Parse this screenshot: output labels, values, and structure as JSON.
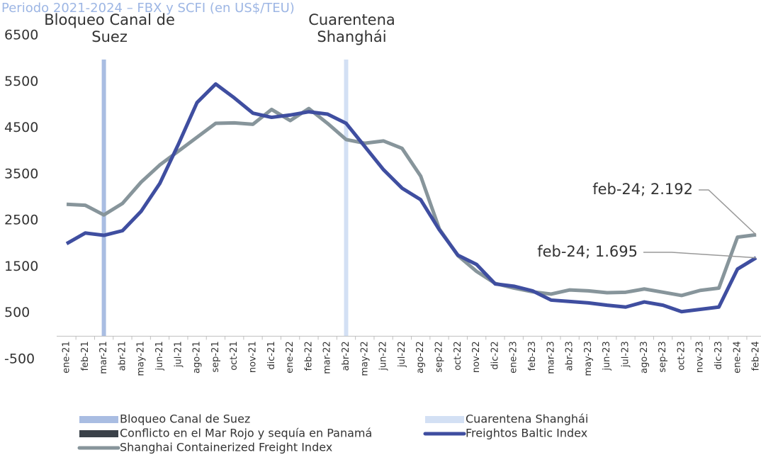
{
  "chart_data": {
    "type": "line",
    "title": "Periodo 2021-2024 – FBX  y SCFI (en US$/TEU)",
    "categories": [
      "ene-21",
      "feb-21",
      "mar-21",
      "abr-21",
      "may-21",
      "jun-21",
      "jul-21",
      "ago-21",
      "sep-21",
      "oct-21",
      "nov-21",
      "dic-21",
      "ene-22",
      "feb-22",
      "mar-22",
      "abr-22",
      "may-22",
      "jun-22",
      "jul-22",
      "ago-22",
      "sep-22",
      "oct-22",
      "nov-22",
      "dic-22",
      "ene-23",
      "feb-23",
      "mar-23",
      "abr-23",
      "may-23",
      "jun-23",
      "jul-23",
      "ago-23",
      "sep-23",
      "oct-23",
      "nov-23",
      "dic-23",
      "ene-24",
      "feb-24"
    ],
    "series": [
      {
        "name": "Freightos Baltic Index",
        "color": "#3f4ea0",
        "values": [
          2000,
          2230,
          2180,
          2280,
          2700,
          3300,
          4150,
          5050,
          5450,
          5150,
          4820,
          4730,
          4780,
          4850,
          4800,
          4600,
          4100,
          3600,
          3200,
          2950,
          2300,
          1750,
          1550,
          1130,
          1080,
          980,
          780,
          750,
          720,
          670,
          630,
          740,
          670,
          530,
          580,
          630,
          1450,
          1695
        ]
      },
      {
        "name": "Shanghai Containerized Freight Index",
        "color": "#87959b",
        "values": [
          2850,
          2830,
          2620,
          2870,
          3330,
          3700,
          4000,
          4300,
          4600,
          4610,
          4580,
          4900,
          4660,
          4920,
          4600,
          4250,
          4170,
          4220,
          4060,
          3460,
          2320,
          1740,
          1400,
          1140,
          1040,
          960,
          910,
          1000,
          980,
          940,
          950,
          1020,
          950,
          880,
          990,
          1040,
          2140,
          2192
        ]
      }
    ],
    "bands": [
      {
        "name": "Bloqueo Canal de Suez",
        "category": "mar-21",
        "color": "#a9bde2"
      },
      {
        "name": "Cuarentena Shanghái",
        "category": "abr-22",
        "color": "#d3e0f4"
      },
      {
        "name": "Conflicto en el Mar Rojo y sequía en Panamá",
        "color": "#3a4149"
      }
    ],
    "annotations": [
      "feb-24;  2.192",
      "feb-24; 1.695"
    ],
    "ylim": [
      -500,
      6500
    ],
    "yticks": [
      -500,
      500,
      1500,
      2500,
      3500,
      4500,
      5500,
      6500
    ],
    "grid": false
  }
}
